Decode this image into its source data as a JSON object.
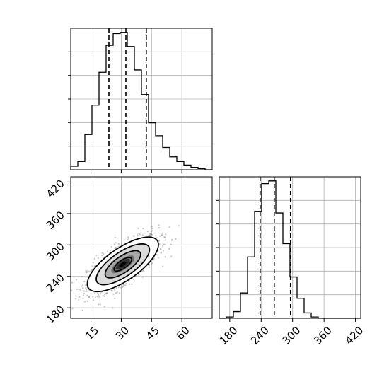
{
  "chart_data": {
    "type": "corner",
    "panels": [
      {
        "id": "hist-x",
        "type": "histogram",
        "xlim": [
          5,
          75
        ],
        "bin_edges": [
          5,
          8.5,
          12,
          15.5,
          19,
          22.5,
          26,
          29.5,
          33,
          36.5,
          40,
          43.5,
          47,
          50.5,
          54,
          57.5,
          61,
          64.5,
          68,
          71.5,
          75
        ],
        "counts": [
          3,
          7,
          30,
          55,
          83,
          106,
          116,
          117,
          105,
          85,
          64,
          40,
          29,
          19,
          11,
          7,
          4,
          2,
          1,
          0
        ],
        "quantiles": [
          23.9,
          32.3,
          42.4
        ],
        "grid": true
      },
      {
        "id": "contour-xy",
        "type": "density_contour",
        "xlim": [
          5,
          75
        ],
        "ylim": [
          160,
          430
        ],
        "x_ticks": [
          15,
          30,
          45,
          60
        ],
        "x_tick_labels": [
          "15",
          "30",
          "45",
          "60"
        ],
        "y_ticks": [
          180,
          240,
          300,
          360,
          420
        ],
        "y_tick_labels": [
          "180",
          "240",
          "300",
          "360",
          "420"
        ],
        "center": [
          30.8,
          263
        ],
        "sigma": [
          8.8,
          26
        ],
        "correlation": 0.72,
        "contour_levels_sigma": [
          0.5,
          1.0,
          1.5,
          2.0
        ],
        "grid": true
      },
      {
        "id": "hist-y",
        "type": "histogram",
        "xlim": [
          160,
          430
        ],
        "x_ticks": [
          180,
          240,
          300,
          360,
          420
        ],
        "x_tick_labels": [
          "180",
          "240",
          "300",
          "360",
          "420"
        ],
        "bin_edges": [
          160,
          173.5,
          187,
          200.5,
          214,
          227.5,
          241,
          254.5,
          268,
          281.5,
          295,
          308.5,
          322,
          335.5,
          349,
          362.5,
          376,
          389.5,
          403,
          416.5,
          430
        ],
        "counts": [
          0,
          1,
          5,
          19,
          46,
          80,
          101,
          103,
          79,
          56,
          31,
          15,
          4,
          1,
          0,
          0,
          0,
          0,
          0,
          0
        ],
        "quantiles": [
          238,
          265,
          296
        ],
        "grid": true
      }
    ]
  },
  "colors": {
    "density_scale": [
      "#ffffff",
      "#000000"
    ],
    "scatter": "#7f7f7f",
    "line": "#000000",
    "grid": "#b0b0b0"
  }
}
